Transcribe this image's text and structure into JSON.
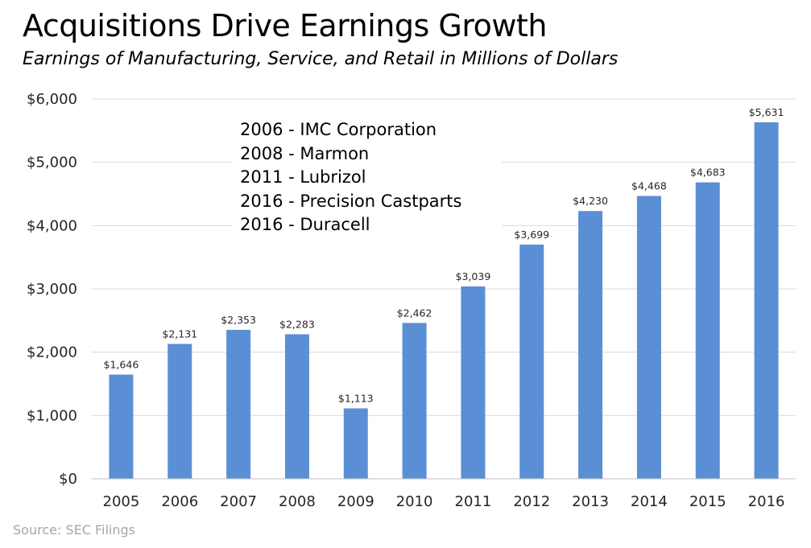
{
  "chart_data": {
    "type": "bar",
    "title": "Acquisitions Drive Earnings Growth",
    "subtitle": "Earnings of Manufacturing, Service, and Retail in Millions of Dollars",
    "source": "Source: SEC Filings",
    "categories": [
      "2005",
      "2006",
      "2007",
      "2008",
      "2009",
      "2010",
      "2011",
      "2012",
      "2013",
      "2014",
      "2015",
      "2016"
    ],
    "values": [
      1646,
      2131,
      2353,
      2283,
      1113,
      2462,
      3039,
      3699,
      4230,
      4468,
      4683,
      5631
    ],
    "data_labels": [
      "$1,646",
      "$2,131",
      "$2,353",
      "$2,283",
      "$1,113",
      "$2,462",
      "$3,039",
      "$3,699",
      "$4,230",
      "$4,468",
      "$4,683",
      "$5,631"
    ],
    "y_ticks": [
      0,
      1000,
      2000,
      3000,
      4000,
      5000,
      6000
    ],
    "y_tick_labels": [
      "$0",
      "$1,000",
      "$2,000",
      "$3,000",
      "$4,000",
      "$5,000",
      "$6,000"
    ],
    "ylim": [
      0,
      6000
    ],
    "grid": true,
    "legend": "none",
    "bar_color": "#5b8fd5",
    "annotations": [
      "2006 - IMC Corporation",
      "2008 - Marmon",
      "2011 - Lubrizol",
      "2016 - Precision Castparts",
      "2016 - Duracell"
    ]
  }
}
